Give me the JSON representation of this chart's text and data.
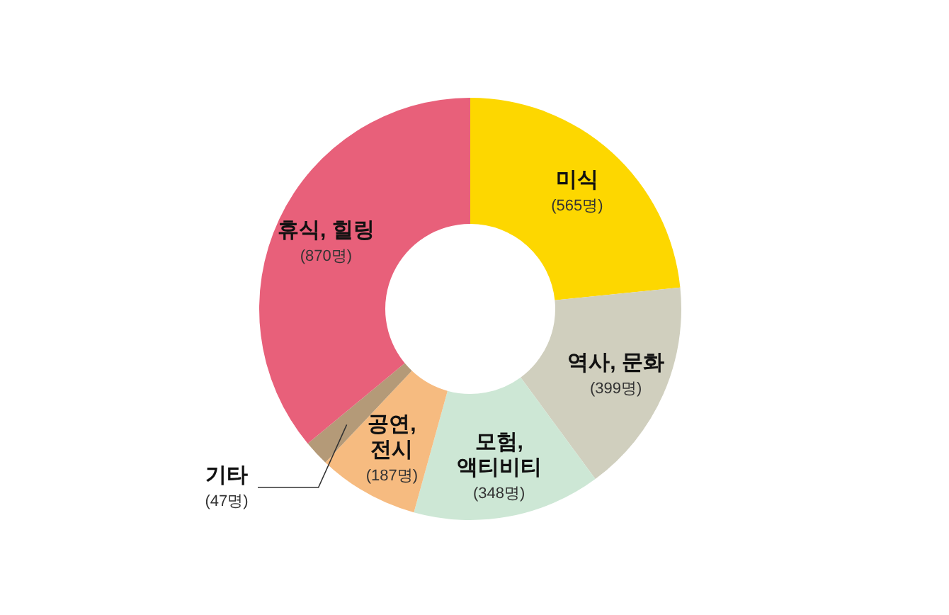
{
  "chart_data": {
    "type": "donut",
    "categories": [
      "미식",
      "역사, 문화",
      "모험,\n액티비티",
      "공연,\n전시",
      "기타",
      "휴식, 힐링"
    ],
    "values": [
      565,
      399,
      348,
      187,
      47,
      870
    ],
    "value_labels": [
      "(565명)",
      "(399명)",
      "(348명)",
      "(187명)",
      "(47명)",
      "(870명)"
    ],
    "colors": [
      "#fdd700",
      "#d0cfbe",
      "#cde7d5",
      "#f6bb80",
      "#b49a78",
      "#e8607a"
    ]
  }
}
